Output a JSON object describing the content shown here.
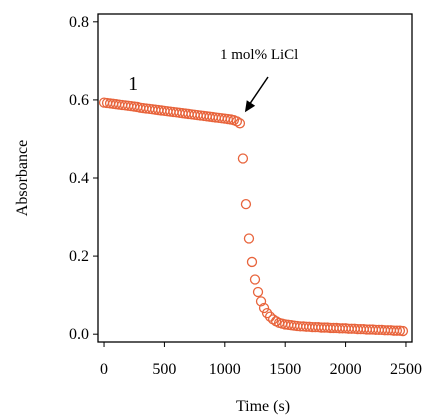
{
  "chart_data": {
    "type": "scatter",
    "title": "",
    "xlabel": "Time (s)",
    "ylabel": "Absorbance",
    "xlim": [
      -50,
      2550
    ],
    "ylim": [
      -0.02,
      0.82
    ],
    "x_ticks": [
      0,
      500,
      1000,
      1500,
      2000,
      2500
    ],
    "x_tick_labels": [
      "0",
      "500",
      "1000",
      "1500",
      "2000",
      "2500"
    ],
    "y_ticks": [
      0.0,
      0.2,
      0.4,
      0.6,
      0.8
    ],
    "y_tick_labels": [
      "0.0",
      "0.2",
      "0.4",
      "0.6",
      "0.8"
    ],
    "grid": false,
    "marker_color": "#e8643c",
    "series": [
      {
        "x": [
          0,
          25,
          50,
          75,
          100,
          125,
          150,
          175,
          200,
          225,
          250,
          275,
          300,
          325,
          350,
          375,
          400,
          425,
          450,
          475,
          500,
          525,
          550,
          575,
          600,
          625,
          650,
          675,
          700,
          725,
          750,
          775,
          800,
          825,
          850,
          875,
          900,
          925,
          950,
          975,
          1000,
          1025,
          1050,
          1075,
          1100,
          1125,
          1150,
          1175,
          1200,
          1225,
          1250,
          1275,
          1300,
          1325,
          1350,
          1375,
          1400,
          1425,
          1450,
          1475,
          1500,
          1525,
          1550,
          1575,
          1600,
          1625,
          1650,
          1675,
          1700,
          1725,
          1750,
          1775,
          1800,
          1825,
          1850,
          1875,
          1900,
          1925,
          1950,
          1975,
          2000,
          2025,
          2050,
          2075,
          2100,
          2125,
          2150,
          2175,
          2200,
          2225,
          2250,
          2275,
          2300,
          2325,
          2350,
          2375,
          2400,
          2425,
          2450,
          2475
        ],
        "y": [
          0.593,
          0.592,
          0.591,
          0.59,
          0.589,
          0.588,
          0.587,
          0.586,
          0.585,
          0.584,
          0.583,
          0.582,
          0.58,
          0.579,
          0.578,
          0.577,
          0.576,
          0.575,
          0.574,
          0.573,
          0.572,
          0.571,
          0.57,
          0.569,
          0.568,
          0.567,
          0.566,
          0.565,
          0.564,
          0.563,
          0.562,
          0.561,
          0.56,
          0.559,
          0.558,
          0.557,
          0.556,
          0.555,
          0.554,
          0.553,
          0.552,
          0.551,
          0.55,
          0.548,
          0.545,
          0.54,
          0.45,
          0.333,
          0.245,
          0.185,
          0.14,
          0.108,
          0.084,
          0.067,
          0.054,
          0.045,
          0.038,
          0.033,
          0.029,
          0.027,
          0.025,
          0.024,
          0.023,
          0.022,
          0.021,
          0.02,
          0.02,
          0.019,
          0.019,
          0.018,
          0.018,
          0.018,
          0.017,
          0.017,
          0.017,
          0.016,
          0.016,
          0.016,
          0.015,
          0.015,
          0.015,
          0.014,
          0.014,
          0.014,
          0.013,
          0.013,
          0.013,
          0.012,
          0.012,
          0.012,
          0.011,
          0.011,
          0.011,
          0.01,
          0.01,
          0.01,
          0.009,
          0.009,
          0.009,
          0.008
        ]
      }
    ],
    "annotations": [
      {
        "text": "1",
        "at": [
          100,
          0.63
        ]
      },
      {
        "text": "1 mol% LiCl",
        "arrow_to": [
          1150,
          0.548
        ]
      }
    ]
  }
}
